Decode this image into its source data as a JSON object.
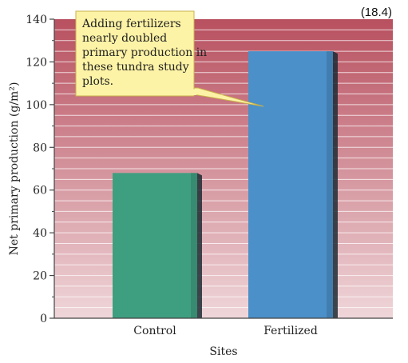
{
  "figure_number": "(18.4)",
  "colors": {
    "bg_top": "#b8505f",
    "bg_bottom": "#efd6d9",
    "control": "#3e9f80",
    "fertilized": "#4b90c8",
    "callout_fill": "#fdf3a6",
    "callout_stroke": "#c9b24a"
  },
  "chart_data": {
    "type": "bar",
    "categories": [
      "Control",
      "Fertilized"
    ],
    "values": [
      68,
      125
    ],
    "title": "",
    "xlabel": "Sites",
    "ylabel": "Net primary production (g/m²)",
    "ylim": [
      0,
      140
    ],
    "yticks": [
      "0",
      "20",
      "40",
      "60",
      "80",
      "100",
      "120",
      "140"
    ],
    "grid": true,
    "annotation": {
      "lines": [
        "Adding fertilizers",
        "nearly doubled",
        "primary production in",
        "these tundra study",
        "plots."
      ],
      "points_to": "Fertilized"
    }
  }
}
